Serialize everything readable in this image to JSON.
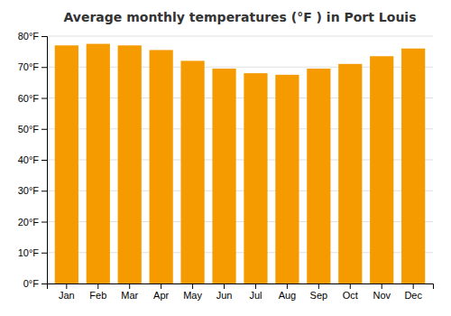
{
  "chart_data": {
    "type": "bar",
    "title": "Average monthly temperatures (°F ) in Port Louis",
    "categories": [
      "Jan",
      "Feb",
      "Mar",
      "Apr",
      "May",
      "Jun",
      "Jul",
      "Aug",
      "Sep",
      "Oct",
      "Nov",
      "Dec"
    ],
    "values": [
      77,
      77.5,
      77,
      75.5,
      72,
      69.5,
      68,
      67.5,
      69.5,
      71,
      73.5,
      76
    ],
    "color": "#F59B00",
    "ylim": [
      0,
      80
    ],
    "yticks": [
      {
        "value": 0,
        "label": "0°F"
      },
      {
        "value": 10,
        "label": "10°F"
      },
      {
        "value": 20,
        "label": "20°F"
      },
      {
        "value": 30,
        "label": "30°F"
      },
      {
        "value": 40,
        "label": "40°F"
      },
      {
        "value": 50,
        "label": "50°F"
      },
      {
        "value": 60,
        "label": "60°F"
      },
      {
        "value": 70,
        "label": "70°F"
      },
      {
        "value": 80,
        "label": "80°F"
      }
    ],
    "grid": true
  }
}
